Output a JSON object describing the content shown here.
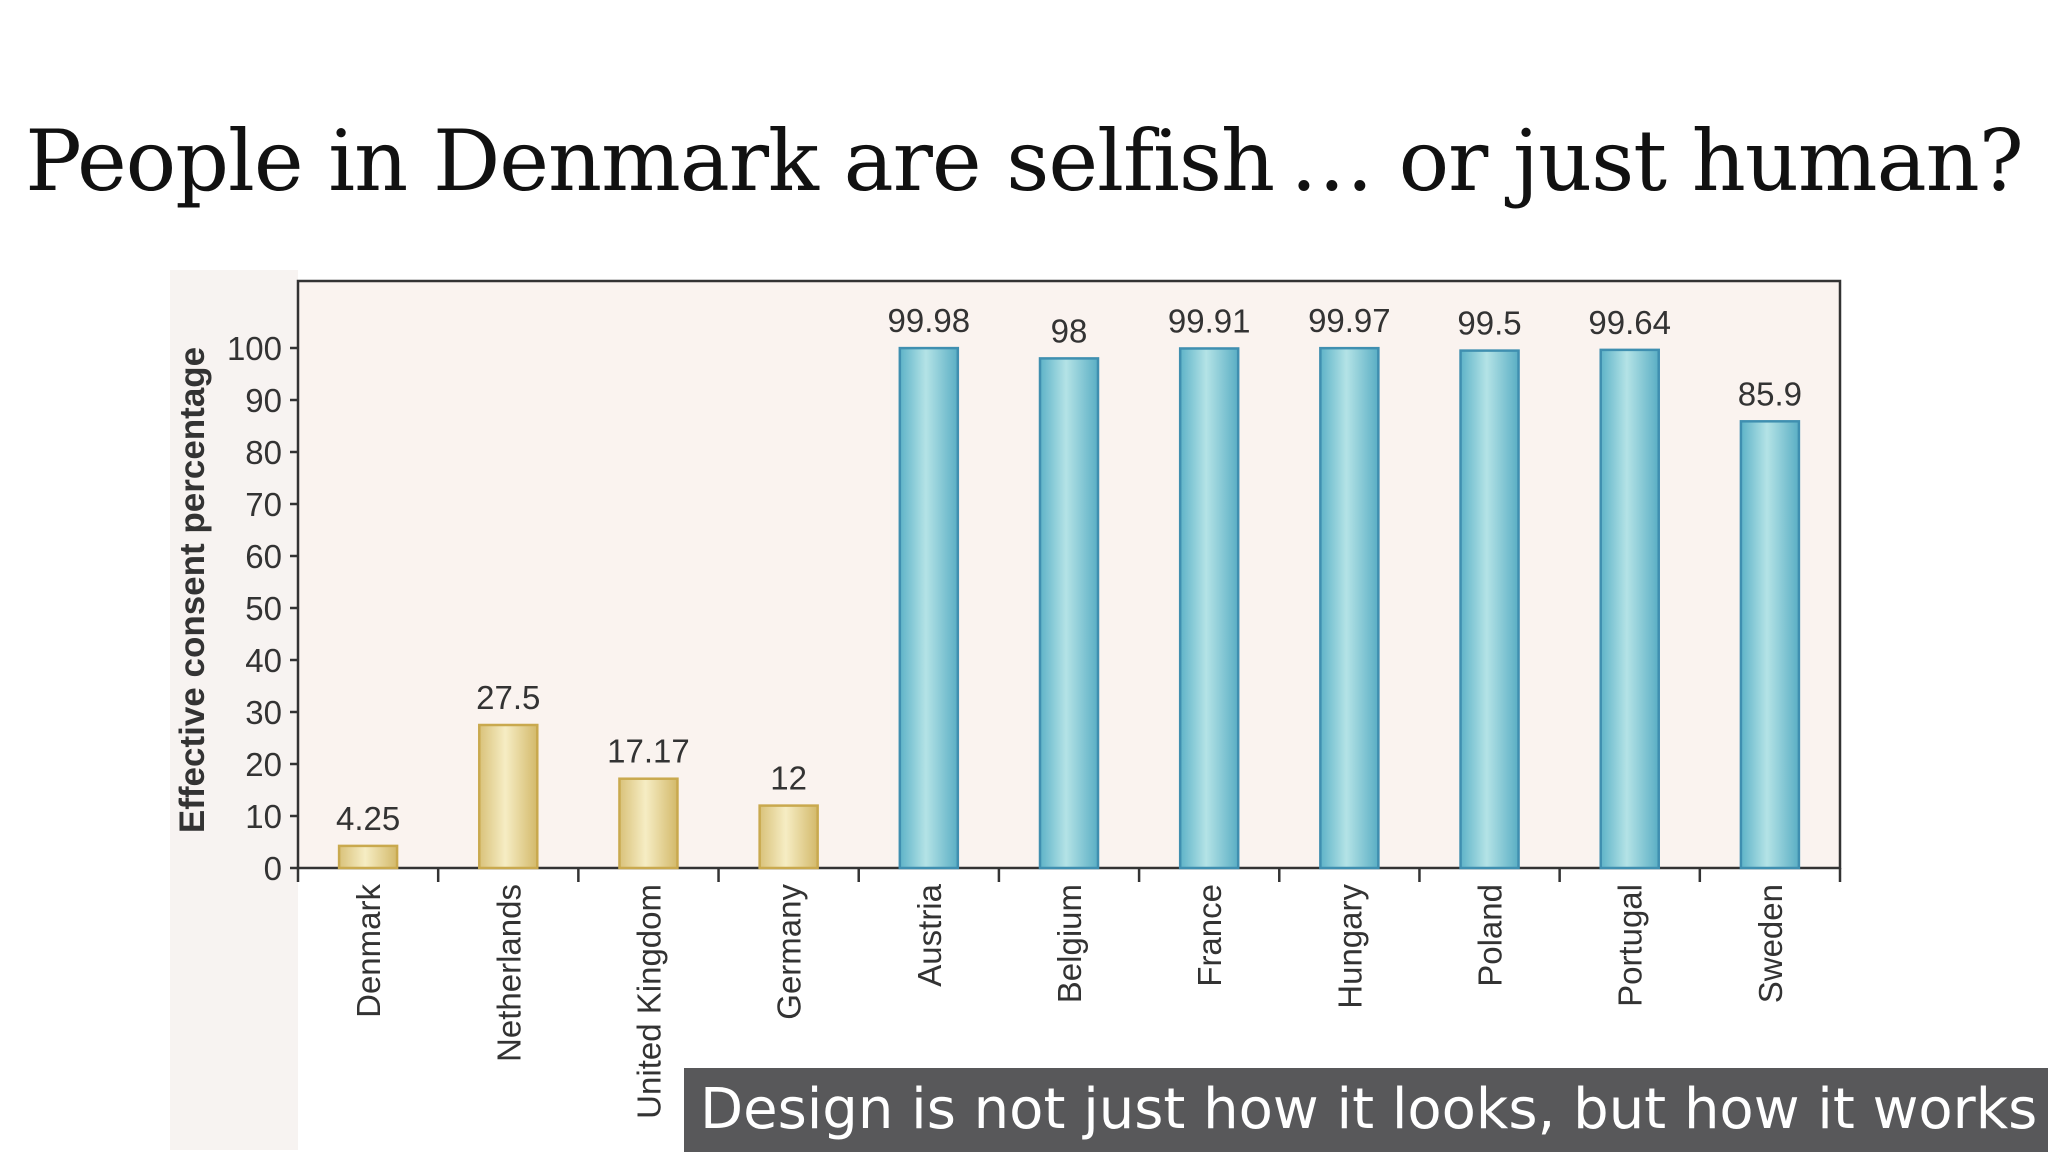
{
  "slide": {
    "title": "People in Denmark are selfish … or just human?",
    "caption": "Design is not just how it looks, but how it works"
  },
  "chart_data": {
    "type": "bar",
    "title": "",
    "xlabel": "",
    "ylabel": "Effective consent percentage",
    "ylim": [
      0,
      100
    ],
    "yticks": [
      0,
      10,
      20,
      30,
      40,
      50,
      60,
      70,
      80,
      90,
      100
    ],
    "grid": false,
    "categories": [
      "Denmark",
      "Netherlands",
      "United Kingdom",
      "Germany",
      "Austria",
      "Belgium",
      "France",
      "Hungary",
      "Poland",
      "Portugal",
      "Sweden"
    ],
    "values": [
      4.25,
      27.5,
      17.17,
      12,
      99.98,
      98,
      99.91,
      99.97,
      99.5,
      99.64,
      85.9
    ],
    "data_labels": [
      "4.25",
      "27.5",
      "17.17",
      "12",
      "99.98",
      "98",
      "99.91",
      "99.97",
      "99.5",
      "99.64",
      "85.9"
    ],
    "colors": [
      "#e8d9a0",
      "#e8d9a0",
      "#e8d9a0",
      "#e8d9a0",
      "#8fcfd6",
      "#8fcfd6",
      "#8fcfd6",
      "#8fcfd6",
      "#8fcfd6",
      "#8fcfd6",
      "#8fcfd6"
    ],
    "edge_colors": [
      "#c9a94e",
      "#c9a94e",
      "#c9a94e",
      "#c9a94e",
      "#3f8fb0",
      "#3f8fb0",
      "#3f8fb0",
      "#3f8fb0",
      "#3f8fb0",
      "#3f8fb0",
      "#3f8fb0"
    ],
    "plot_background": "#faf3ef"
  }
}
